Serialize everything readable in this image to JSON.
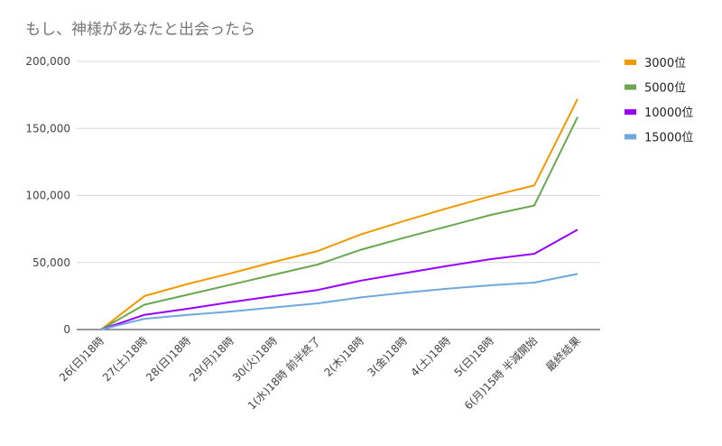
{
  "chart_data": {
    "type": "line",
    "title": "もし、神様があなたと出会ったら",
    "xlabel": "",
    "ylabel": "",
    "categories": [
      "26(日)18時",
      "27(土)18時",
      "28(日)18時",
      "29(月)18時",
      "30(火)18時",
      "1(水)18時 前半終了",
      "2(木)18時",
      "3(金)18時",
      "4(土)18時",
      "5(日)18時",
      "6(月)15時 半減開始",
      "最終結果"
    ],
    "ylim": [
      0,
      200000
    ],
    "yticks": [
      "0",
      "50,000",
      "100,000",
      "150,000",
      "200,000"
    ],
    "ytick_values": [
      0,
      50000,
      100000,
      150000,
      200000
    ],
    "grid": true,
    "legend_position": "right",
    "series": [
      {
        "name": "3000位",
        "color": "#f29900",
        "values": [
          0,
          25000,
          34000,
          42000,
          50500,
          58500,
          71000,
          81000,
          90500,
          99500,
          107500,
          172000
        ]
      },
      {
        "name": "5000位",
        "color": "#6aa84f",
        "values": [
          0,
          18500,
          26000,
          33500,
          41000,
          48500,
          59500,
          68500,
          77000,
          85500,
          92500,
          158500
        ]
      },
      {
        "name": "10000位",
        "color": "#9900ff",
        "values": [
          0,
          11000,
          15500,
          20500,
          25000,
          29500,
          36500,
          42000,
          47500,
          52500,
          56500,
          74500
        ]
      },
      {
        "name": "15000位",
        "color": "#6fa8dc",
        "values": [
          0,
          8000,
          11000,
          13500,
          16500,
          19500,
          24000,
          27500,
          30500,
          33000,
          35000,
          41500
        ]
      }
    ]
  }
}
